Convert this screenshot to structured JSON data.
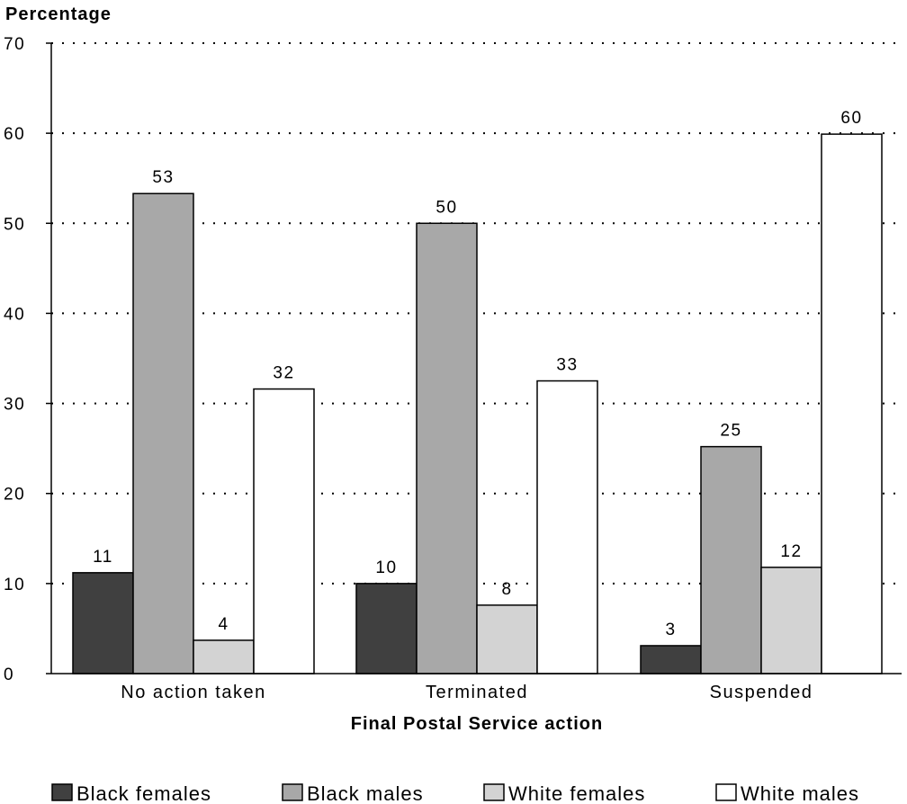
{
  "chart_data": {
    "type": "bar",
    "ylabel": "Percentage",
    "xlabel": "Final Postal Service action",
    "ylim": [
      0,
      70
    ],
    "yticks": [
      0,
      10,
      20,
      30,
      40,
      50,
      60,
      70
    ],
    "grid": true,
    "legend_position": "bottom",
    "categories": [
      "No action taken",
      "Terminated",
      "Suspended"
    ],
    "series": [
      {
        "name": "Black females",
        "color": "#404040",
        "values": [
          11.2,
          10.0,
          3.1
        ],
        "labels": [
          "11",
          "10",
          "3"
        ]
      },
      {
        "name": "Black males",
        "color": "#a8a8a8",
        "values": [
          53.3,
          50.0,
          25.2
        ],
        "labels": [
          "53",
          "50",
          "25"
        ]
      },
      {
        "name": "White females",
        "color": "#d3d3d3",
        "values": [
          3.7,
          7.6,
          11.8
        ],
        "labels": [
          "4",
          "8",
          "12"
        ]
      },
      {
        "name": "White males",
        "color": "#ffffff",
        "values": [
          31.6,
          32.5,
          59.9
        ],
        "labels": [
          "32",
          "33",
          "60"
        ]
      }
    ]
  }
}
